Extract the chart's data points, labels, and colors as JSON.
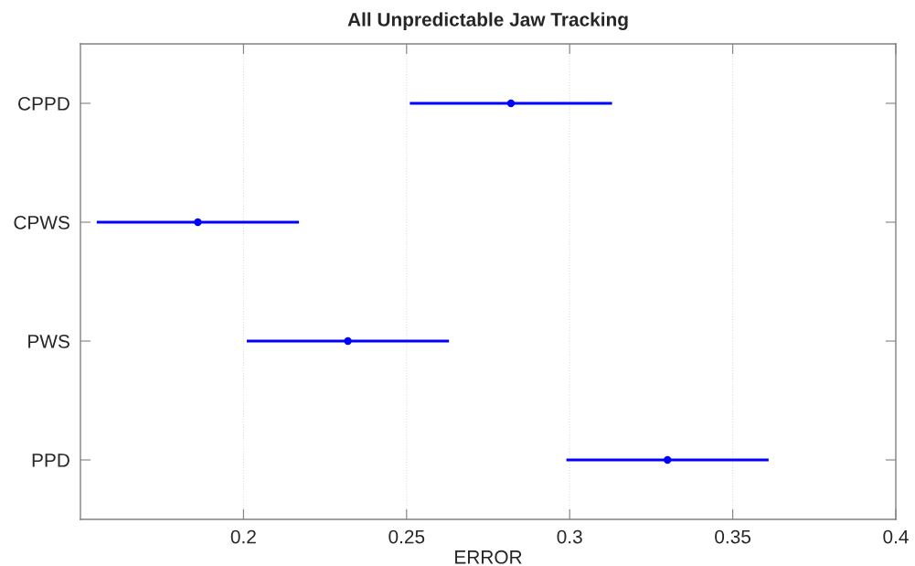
{
  "chart_data": {
    "type": "scatter",
    "title": "All Unpredictable Jaw Tracking",
    "xlabel": "ERROR",
    "categories": [
      "CPPD",
      "CPWS",
      "PWS",
      "PPD"
    ],
    "values": [
      0.282,
      0.186,
      0.232,
      0.33
    ],
    "errors": [
      0.031,
      0.031,
      0.031,
      0.031
    ],
    "color": "#0000ff",
    "orientation": "horizontal",
    "marker": "circle",
    "xlim": [
      0.15,
      0.4
    ],
    "xticks": [
      0.2,
      0.25,
      0.3,
      0.35,
      0.4
    ],
    "grid": "x"
  }
}
